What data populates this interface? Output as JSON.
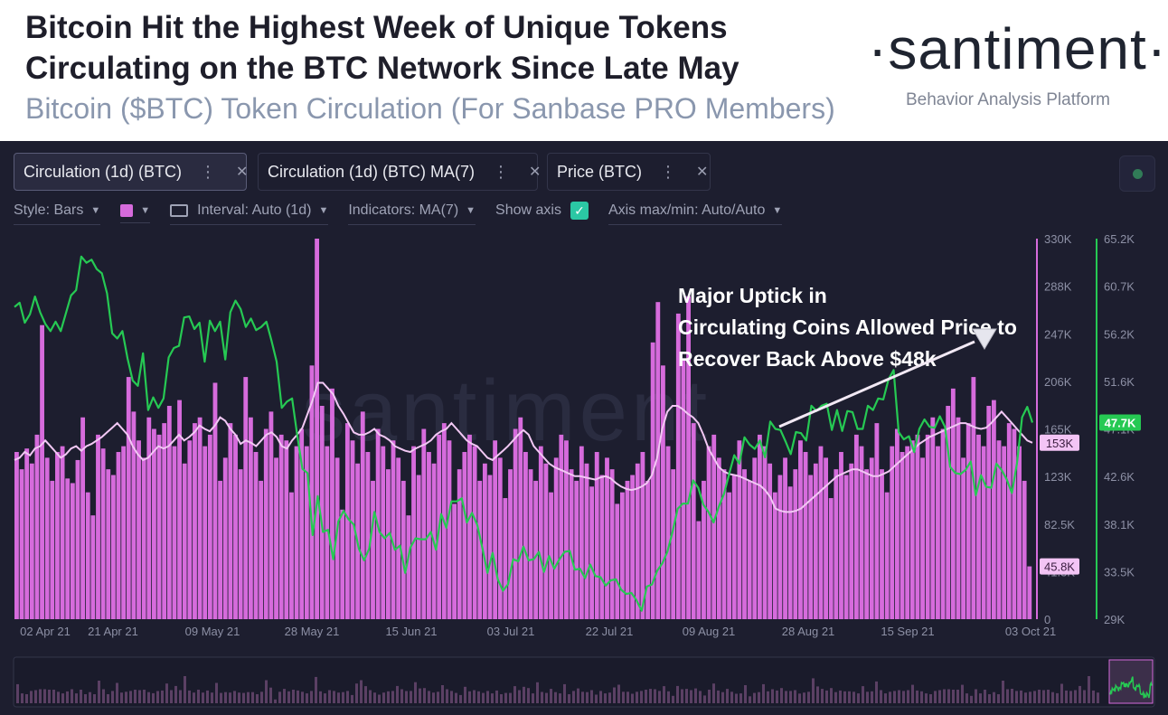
{
  "header": {
    "headline": "Bitcoin Hit the Highest Week of Unique Tokens Circulating on the BTC Network Since Late May",
    "subtitle": "Bitcoin ($BTC) Token Circulation (For Sanbase PRO Members)",
    "brand": "·santiment·",
    "brand_tagline": "Behavior Analysis Platform"
  },
  "metrics": [
    {
      "label": "Circulation (1d) (BTC)",
      "color": "#d66bdc",
      "menu_icon": "more-vertical-icon",
      "close_icon": "close-icon"
    },
    {
      "label": "Circulation (1d) (BTC) MA(7)",
      "color": "#f2c8f4",
      "menu_icon": "more-vertical-icon",
      "close_icon": "close-icon"
    },
    {
      "label": "Price (BTC)",
      "color": "#26c953",
      "menu_icon": "more-vertical-icon",
      "close_icon": "close-icon"
    }
  ],
  "toolbar": {
    "style": "Style: Bars",
    "interval": "Interval: Auto (1d)",
    "indicators": "Indicators: MA(7)",
    "show_axis": "Show axis",
    "show_axis_checked": true,
    "axis_maxmin": "Axis max/min: Auto/Auto"
  },
  "chart_data": {
    "type": "bar",
    "watermark": "santiment",
    "x_ticks": [
      "02 Apr 21",
      "21 Apr 21",
      "09 May 21",
      "28 May 21",
      "15 Jun 21",
      "03 Jul 21",
      "22 Jul 21",
      "09 Aug 21",
      "28 Aug 21",
      "15 Sep 21",
      "03 Oct 21"
    ],
    "y_left": {
      "label": "Circulation (1d) (BTC)",
      "ticks": [
        "330K",
        "288K",
        "247K",
        "206K",
        "165K",
        "123K",
        "82.5K",
        "41.3K",
        "0"
      ],
      "range": [
        0,
        330000
      ],
      "markers": [
        {
          "text": "153K",
          "value": 153000
        },
        {
          "text": "45.8K",
          "value": 45800
        }
      ]
    },
    "y_right": {
      "label": "Price (BTC)",
      "ticks": [
        "65.2K",
        "60.7K",
        "56.2K",
        "51.6K",
        "47.1K",
        "42.6K",
        "38.1K",
        "33.5K",
        "29K"
      ],
      "range": [
        29000,
        65200
      ],
      "marker": {
        "text": "47.7K",
        "value": 47700
      }
    },
    "annotation": "Major Uptick in Circulating Coins Allowed Price to Recover Back Above $48k",
    "circulation_series": {
      "name": "Circulation (1d) (BTC)",
      "color": "#d66bdc",
      "start": "2021-03-30",
      "end": "2021-10-03",
      "values": [
        145000,
        130000,
        148000,
        135000,
        160000,
        255000,
        140000,
        120000,
        145000,
        150000,
        122000,
        118000,
        138000,
        175000,
        110000,
        90000,
        160000,
        148000,
        130000,
        125000,
        145000,
        150000,
        210000,
        180000,
        155000,
        140000,
        175000,
        165000,
        160000,
        170000,
        185000,
        150000,
        190000,
        135000,
        155000,
        170000,
        175000,
        150000,
        160000,
        205000,
        120000,
        140000,
        170000,
        160000,
        130000,
        210000,
        175000,
        145000,
        120000,
        165000,
        180000,
        140000,
        160000,
        155000,
        110000,
        150000,
        165000,
        150000,
        220000,
        330000,
        185000,
        150000,
        200000,
        140000,
        95000,
        170000,
        155000,
        135000,
        180000,
        145000,
        120000,
        165000,
        150000,
        130000,
        155000,
        140000,
        120000,
        90000,
        150000,
        125000,
        165000,
        145000,
        135000,
        160000,
        170000,
        155000,
        100000,
        130000,
        145000,
        160000,
        150000,
        120000,
        135000,
        125000,
        155000,
        140000,
        105000,
        130000,
        165000,
        175000,
        145000,
        130000,
        120000,
        150000,
        135000,
        110000,
        140000,
        160000,
        155000,
        130000,
        120000,
        150000,
        135000,
        115000,
        145000,
        125000,
        140000,
        130000,
        100000,
        110000,
        120000,
        125000,
        135000,
        145000,
        120000,
        240000,
        275000,
        220000,
        150000,
        130000,
        265000,
        225000,
        280000,
        170000,
        85000,
        120000,
        150000,
        160000,
        140000,
        130000,
        110000,
        125000,
        155000,
        130000,
        120000,
        140000,
        160000,
        150000,
        135000,
        110000,
        125000,
        140000,
        115000,
        130000,
        155000,
        145000,
        125000,
        135000,
        150000,
        140000,
        105000,
        130000,
        145000,
        125000,
        135000,
        160000,
        150000,
        130000,
        140000,
        170000,
        130000,
        110000,
        150000,
        165000,
        145000,
        150000,
        155000,
        160000,
        140000,
        160000,
        175000,
        150000,
        165000,
        185000,
        200000,
        175000,
        140000,
        170000,
        210000,
        160000,
        150000,
        185000,
        190000,
        155000,
        150000,
        170000,
        165000,
        150000,
        120000,
        45800
      ]
    },
    "ma7_series": {
      "name": "Circulation (1d) (BTC) MA(7)",
      "color": "#f2c8f4",
      "start": "2021-03-30",
      "values": [
        138000,
        140000,
        145000,
        142000,
        148000,
        150000,
        155000,
        150000,
        145000,
        140000,
        143000,
        148000,
        150000,
        146000,
        150000,
        152000,
        155000,
        158000,
        162000,
        166000,
        170000,
        165000,
        160000,
        150000,
        143000,
        138000,
        140000,
        145000,
        150000,
        148000,
        150000,
        155000,
        160000,
        155000,
        158000,
        162000,
        168000,
        165000,
        163000,
        168000,
        175000,
        172000,
        165000,
        160000,
        152000,
        155000,
        153000,
        150000,
        155000,
        160000,
        162000,
        158000,
        150000,
        148000,
        155000,
        160000,
        166000,
        178000,
        190000,
        205000,
        205000,
        200000,
        195000,
        185000,
        178000,
        170000,
        162000,
        160000,
        160000,
        162000,
        165000,
        160000,
        158000,
        155000,
        150000,
        148000,
        146000,
        145000,
        148000,
        150000,
        152000,
        155000,
        160000,
        163000,
        165000,
        170000,
        165000,
        160000,
        155000,
        152000,
        150000,
        145000,
        140000,
        138000,
        142000,
        146000,
        150000,
        155000,
        160000,
        164000,
        160000,
        150000,
        145000,
        140000,
        135000,
        132000,
        130000,
        128000,
        126000,
        124000,
        124000,
        123000,
        122000,
        121000,
        123000,
        124000,
        122000,
        118000,
        115000,
        113000,
        112000,
        113000,
        115000,
        118000,
        125000,
        140000,
        165000,
        180000,
        185000,
        185000,
        182000,
        178000,
        175000,
        170000,
        160000,
        148000,
        140000,
        132000,
        128000,
        126000,
        125000,
        124000,
        122000,
        120000,
        118000,
        116000,
        112000,
        106000,
        96000,
        94000,
        93000,
        93000,
        94000,
        96000,
        100000,
        104000,
        108000,
        112000,
        116000,
        120000,
        124000,
        126000,
        128000,
        130000,
        130000,
        128000,
        126000,
        124000,
        124000,
        126000,
        128000,
        132000,
        136000,
        140000,
        144000,
        148000,
        152000,
        155000,
        158000,
        160000,
        162000,
        164000,
        166000,
        168000,
        170000,
        170000,
        168000,
        166000,
        165000,
        166000,
        170000,
        175000,
        180000,
        175000,
        170000,
        165000,
        160000,
        155000,
        153000
      ]
    },
    "price_series": {
      "name": "Price (BTC)",
      "color": "#26c953",
      "start": "2021-03-30",
      "values": [
        58700,
        59100,
        57200,
        58000,
        59700,
        58200,
        57100,
        56400,
        57300,
        56400,
        58100,
        59800,
        60300,
        63500,
        62900,
        63200,
        62300,
        61900,
        60000,
        56200,
        55700,
        56400,
        53800,
        51700,
        51200,
        54300,
        48900,
        50100,
        49100,
        50000,
        53900,
        54800,
        55000,
        57700,
        57800,
        56600,
        57200,
        53500,
        57400,
        56400,
        57300,
        53700,
        58200,
        59300,
        58500,
        56800,
        57600,
        56500,
        56800,
        57300,
        55500,
        53500,
        49100,
        49700,
        50000,
        46500,
        43300,
        42900,
        37000,
        40700,
        37300,
        37500,
        34700,
        38300,
        39300,
        38500,
        38000,
        35700,
        34600,
        35700,
        39200,
        37300,
        36700,
        37200,
        35600,
        36000,
        33400,
        35800,
        36700,
        36600,
        36600,
        37300,
        35600,
        39000,
        37700,
        40200,
        40200,
        40500,
        38200,
        39100,
        38000,
        35800,
        33400,
        35300,
        32800,
        31700,
        32300,
        34700,
        34500,
        35900,
        34600,
        34700,
        35400,
        33500,
        35000,
        33800,
        34700,
        35400,
        35500,
        33700,
        33800,
        32900,
        34200,
        33100,
        33000,
        32200,
        32700,
        32800,
        31800,
        31400,
        31500,
        30800,
        29800,
        32100,
        32300,
        33600,
        34300,
        35400,
        37300,
        39500,
        40000,
        40000,
        42200,
        41500,
        39900,
        39200,
        38200,
        39700,
        40900,
        42800,
        44600,
        43800,
        46300,
        45600,
        45200,
        46000,
        44400,
        47800,
        47100,
        47000,
        45900,
        44700,
        46800,
        46700,
        46000,
        49300,
        48800,
        49300,
        49500,
        47000,
        48900,
        46900,
        48800,
        48700,
        47100,
        47100,
        49300,
        48900,
        50000,
        49900,
        51800,
        52700,
        46800,
        46100,
        46400,
        44900,
        47100,
        48000,
        47300,
        47200,
        48300,
        47300,
        43500,
        42900,
        42800,
        43200,
        44000,
        40800,
        42700,
        41600,
        41500,
        43800,
        43200,
        42300,
        41000,
        43800,
        48200,
        49200,
        47700
      ]
    }
  }
}
